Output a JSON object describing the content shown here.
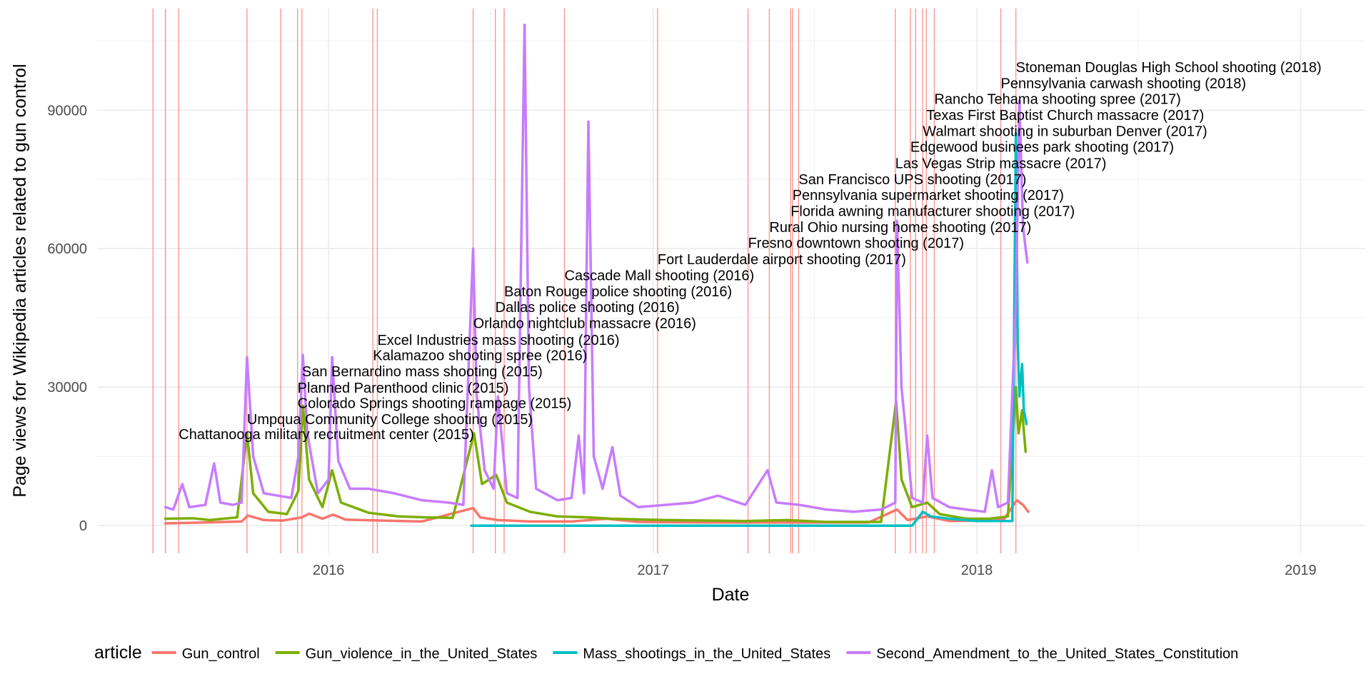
{
  "chart_data": {
    "type": "line",
    "title": "",
    "xlabel": "Date",
    "ylabel": "Page views for Wikipedia articles related to gun control",
    "x_ticks": [
      "2016",
      "2017",
      "2018",
      "2019"
    ],
    "y_ticks": [
      "0",
      "30000",
      "60000",
      "90000"
    ],
    "xlim": [
      "2015-04-15",
      "2019-03-15"
    ],
    "ylim": [
      -6000,
      112000
    ],
    "grid": true,
    "legend_position": "bottom",
    "legend_title": "article",
    "series": [
      {
        "name": "Gun_control",
        "color": "#F8766D",
        "points": [
          [
            "2015-07-01",
            500
          ],
          [
            "2015-08-15",
            700
          ],
          [
            "2015-09-25",
            900
          ],
          [
            "2015-10-02",
            2200
          ],
          [
            "2015-10-20",
            1200
          ],
          [
            "2015-11-10",
            1100
          ],
          [
            "2015-12-02",
            1800
          ],
          [
            "2015-12-10",
            2600
          ],
          [
            "2015-12-25",
            1500
          ],
          [
            "2016-01-06",
            2400
          ],
          [
            "2016-01-20",
            1300
          ],
          [
            "2016-03-01",
            1100
          ],
          [
            "2016-04-15",
            900
          ],
          [
            "2016-06-12",
            3800
          ],
          [
            "2016-06-20",
            1800
          ],
          [
            "2016-07-10",
            1200
          ],
          [
            "2016-08-15",
            900
          ],
          [
            "2016-10-01",
            900
          ],
          [
            "2016-11-09",
            1500
          ],
          [
            "2016-12-15",
            800
          ],
          [
            "2017-03-01",
            700
          ],
          [
            "2017-06-01",
            700
          ],
          [
            "2017-09-01",
            700
          ],
          [
            "2017-10-03",
            3500
          ],
          [
            "2017-10-15",
            1200
          ],
          [
            "2017-11-06",
            2000
          ],
          [
            "2017-12-01",
            1000
          ],
          [
            "2018-01-10",
            1100
          ],
          [
            "2018-02-01",
            1500
          ],
          [
            "2018-02-15",
            5500
          ],
          [
            "2018-02-22",
            4500
          ],
          [
            "2018-02-28",
            3000
          ]
        ]
      },
      {
        "name": "Gun_violence_in_the_United_States",
        "color": "#7CAE00",
        "points": [
          [
            "2015-07-01",
            1500
          ],
          [
            "2015-08-01",
            1600
          ],
          [
            "2015-08-20",
            1200
          ],
          [
            "2015-09-20",
            1800
          ],
          [
            "2015-10-01",
            20000
          ],
          [
            "2015-10-08",
            7000
          ],
          [
            "2015-10-25",
            3000
          ],
          [
            "2015-11-15",
            2500
          ],
          [
            "2015-11-28",
            7500
          ],
          [
            "2015-12-03",
            26000
          ],
          [
            "2015-12-10",
            10000
          ],
          [
            "2015-12-25",
            4000
          ],
          [
            "2016-01-05",
            12000
          ],
          [
            "2016-01-15",
            5000
          ],
          [
            "2016-02-15",
            2800
          ],
          [
            "2016-03-20",
            2000
          ],
          [
            "2016-04-20",
            1800
          ],
          [
            "2016-05-20",
            1700
          ],
          [
            "2016-06-13",
            20000
          ],
          [
            "2016-06-22",
            9000
          ],
          [
            "2016-07-08",
            11000
          ],
          [
            "2016-07-20",
            5000
          ],
          [
            "2016-08-15",
            3000
          ],
          [
            "2016-09-15",
            2000
          ],
          [
            "2016-10-20",
            1800
          ],
          [
            "2016-11-15",
            1500
          ],
          [
            "2017-01-15",
            1200
          ],
          [
            "2017-04-15",
            1000
          ],
          [
            "2017-06-01",
            1200
          ],
          [
            "2017-07-15",
            800
          ],
          [
            "2017-09-15",
            800
          ],
          [
            "2017-10-02",
            27000
          ],
          [
            "2017-10-08",
            10000
          ],
          [
            "2017-10-20",
            4000
          ],
          [
            "2017-11-06",
            5000
          ],
          [
            "2017-11-20",
            2500
          ],
          [
            "2017-12-20",
            1500
          ],
          [
            "2018-01-15",
            1500
          ],
          [
            "2018-02-05",
            2000
          ],
          [
            "2018-02-14",
            30000
          ],
          [
            "2018-02-17",
            20000
          ],
          [
            "2018-02-21",
            25000
          ],
          [
            "2018-02-25",
            16000
          ]
        ]
      },
      {
        "name": "Mass_shootings_in_the_United_States",
        "color": "#00BFC4",
        "points": [
          [
            "2016-06-10",
            0
          ],
          [
            "2016-09-01",
            0
          ],
          [
            "2017-01-01",
            0
          ],
          [
            "2017-04-01",
            0
          ],
          [
            "2017-07-01",
            0
          ],
          [
            "2017-10-01",
            0
          ],
          [
            "2017-10-20",
            0
          ],
          [
            "2017-11-01",
            3000
          ],
          [
            "2017-11-10",
            2000
          ],
          [
            "2017-12-01",
            1500
          ],
          [
            "2018-01-01",
            1000
          ],
          [
            "2018-02-10",
            1000
          ],
          [
            "2018-02-14",
            85000
          ],
          [
            "2018-02-16",
            40000
          ],
          [
            "2018-02-18",
            28000
          ],
          [
            "2018-02-21",
            35000
          ],
          [
            "2018-02-23",
            25000
          ],
          [
            "2018-02-26",
            22000
          ]
        ]
      },
      {
        "name": "Second_Amendment_to_the_United_States_Constitution",
        "color": "#C77CFF",
        "points": [
          [
            "2015-07-01",
            4000
          ],
          [
            "2015-07-10",
            3500
          ],
          [
            "2015-07-20",
            9000
          ],
          [
            "2015-07-28",
            4000
          ],
          [
            "2015-08-15",
            4500
          ],
          [
            "2015-08-25",
            13500
          ],
          [
            "2015-09-01",
            5000
          ],
          [
            "2015-09-15",
            4500
          ],
          [
            "2015-09-25",
            5000
          ],
          [
            "2015-10-01",
            36500
          ],
          [
            "2015-10-08",
            15000
          ],
          [
            "2015-10-20",
            7000
          ],
          [
            "2015-11-05",
            6500
          ],
          [
            "2015-11-20",
            6000
          ],
          [
            "2015-11-28",
            15000
          ],
          [
            "2015-12-03",
            37000
          ],
          [
            "2015-12-08",
            20000
          ],
          [
            "2015-12-20",
            7000
          ],
          [
            "2016-01-01",
            10000
          ],
          [
            "2016-01-05",
            36500
          ],
          [
            "2016-01-12",
            14000
          ],
          [
            "2016-01-25",
            8000
          ],
          [
            "2016-02-15",
            8000
          ],
          [
            "2016-03-15",
            7000
          ],
          [
            "2016-04-15",
            5500
          ],
          [
            "2016-05-15",
            5000
          ],
          [
            "2016-06-01",
            4500
          ],
          [
            "2016-06-12",
            60000
          ],
          [
            "2016-06-16",
            28000
          ],
          [
            "2016-06-25",
            12000
          ],
          [
            "2016-07-05",
            8000
          ],
          [
            "2016-07-10",
            28000
          ],
          [
            "2016-07-20",
            7000
          ],
          [
            "2016-08-01",
            6000
          ],
          [
            "2016-08-09",
            108500
          ],
          [
            "2016-08-14",
            30000
          ],
          [
            "2016-08-22",
            8000
          ],
          [
            "2016-09-15",
            5500
          ],
          [
            "2016-10-01",
            6000
          ],
          [
            "2016-10-09",
            19500
          ],
          [
            "2016-10-15",
            7000
          ],
          [
            "2016-10-20",
            87500
          ],
          [
            "2016-10-26",
            15000
          ],
          [
            "2016-11-05",
            8000
          ],
          [
            "2016-11-16",
            17000
          ],
          [
            "2016-11-25",
            6500
          ],
          [
            "2016-12-15",
            4000
          ],
          [
            "2017-01-15",
            4500
          ],
          [
            "2017-02-15",
            5000
          ],
          [
            "2017-03-15",
            6500
          ],
          [
            "2017-04-15",
            4500
          ],
          [
            "2017-05-10",
            12000
          ],
          [
            "2017-05-20",
            5000
          ],
          [
            "2017-06-15",
            4500
          ],
          [
            "2017-07-15",
            3500
          ],
          [
            "2017-08-15",
            3000
          ],
          [
            "2017-09-15",
            3500
          ],
          [
            "2017-10-01",
            5000
          ],
          [
            "2017-10-03",
            66000
          ],
          [
            "2017-10-08",
            30000
          ],
          [
            "2017-10-20",
            6000
          ],
          [
            "2017-11-01",
            5000
          ],
          [
            "2017-11-06",
            19500
          ],
          [
            "2017-11-12",
            6000
          ],
          [
            "2017-12-01",
            4000
          ],
          [
            "2017-12-20",
            3500
          ],
          [
            "2018-01-10",
            3000
          ],
          [
            "2018-01-18",
            12000
          ],
          [
            "2018-01-25",
            4000
          ],
          [
            "2018-02-05",
            5000
          ],
          [
            "2018-02-14",
            48000
          ],
          [
            "2018-02-18",
            92000
          ],
          [
            "2018-02-22",
            65000
          ],
          [
            "2018-02-25",
            60000
          ],
          [
            "2018-02-27",
            57000
          ]
        ]
      }
    ],
    "event_lines": [
      "2015-06-17",
      "2015-07-01",
      "2015-07-16",
      "2015-10-01",
      "2015-11-08",
      "2015-11-27",
      "2015-12-02",
      "2016-02-20",
      "2016-02-25",
      "2016-06-12",
      "2016-07-07",
      "2016-07-17",
      "2016-09-23",
      "2017-01-06",
      "2017-04-18",
      "2017-05-12",
      "2017-06-05",
      "2017-06-07",
      "2017-06-14",
      "2017-10-01",
      "2017-10-18",
      "2017-10-24",
      "2017-11-01",
      "2017-11-05",
      "2017-11-14",
      "2018-01-28",
      "2018-02-14"
    ],
    "annotations": [
      {
        "label": "Chattanooga military recruitment center (2015)",
        "date": "2015-07-16",
        "y": 20000
      },
      {
        "label": "Umpqua Community College shooting (2015)",
        "date": "2015-10-01",
        "y": 23200
      },
      {
        "label": "Colorado Springs shooting rampage (2015)",
        "date": "2015-11-27",
        "y": 26700
      },
      {
        "label": "Planned Parenthood clinic (2015)",
        "date": "2015-11-27",
        "y": 30000
      },
      {
        "label": "San Bernardino mass shooting (2015)",
        "date": "2015-12-02",
        "y": 33600
      },
      {
        "label": "Kalamazoo shooting spree (2016)",
        "date": "2016-02-20",
        "y": 37100
      },
      {
        "label": "Excel Industries mass shooting (2016)",
        "date": "2016-02-25",
        "y": 40400
      },
      {
        "label": "Orlando nightclub massacre (2016)",
        "date": "2016-06-12",
        "y": 44000
      },
      {
        "label": "Dallas police shooting (2016)",
        "date": "2016-07-07",
        "y": 47500
      },
      {
        "label": "Baton Rouge police shooting (2016)",
        "date": "2016-07-17",
        "y": 50900
      },
      {
        "label": "Cascade Mall shooting (2016)",
        "date": "2016-09-23",
        "y": 54400
      },
      {
        "label": "Fort Lauderdale airport shooting (2017)",
        "date": "2017-01-06",
        "y": 57900
      },
      {
        "label": "Fresno downtown shooting (2017)",
        "date": "2017-04-18",
        "y": 61400
      },
      {
        "label": "Rural Ohio nursing home shooting (2017)",
        "date": "2017-05-12",
        "y": 64800
      },
      {
        "label": "Florida awning manufacturer shooting (2017)",
        "date": "2017-06-05",
        "y": 68300
      },
      {
        "label": "Pennsylvania supermarket shooting (2017)",
        "date": "2017-06-07",
        "y": 71800
      },
      {
        "label": "San Francisco UPS shooting (2017)",
        "date": "2017-06-14",
        "y": 75200
      },
      {
        "label": "Las Vegas Strip massacre (2017)",
        "date": "2017-10-01",
        "y": 78700
      },
      {
        "label": "Edgewood businees park shooting (2017)",
        "date": "2017-10-18",
        "y": 82200
      },
      {
        "label": "Walmart shooting in suburban Denver (2017)",
        "date": "2017-11-01",
        "y": 85600
      },
      {
        "label": "Texas First Baptist Church massacre (2017)",
        "date": "2017-11-05",
        "y": 89100
      },
      {
        "label": "Rancho Tehama shooting spree (2017)",
        "date": "2017-11-14",
        "y": 92600
      },
      {
        "label": "Pennsylvania carwash shooting (2018)",
        "date": "2018-01-28",
        "y": 96000
      },
      {
        "label": "Stoneman Douglas High School shooting (2018)",
        "date": "2018-02-14",
        "y": 99500
      }
    ]
  }
}
